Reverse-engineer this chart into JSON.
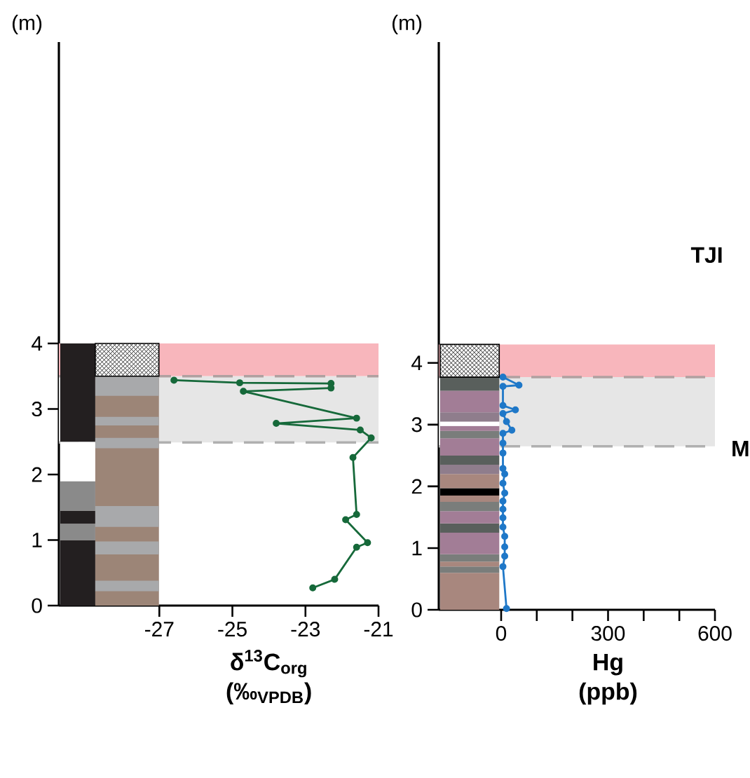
{
  "chart_data": [
    {
      "type": "line",
      "xlabel": "δ$^{13}$C$_{org}$ (‰$_{VPDB}$)",
      "ylabel": "(m)",
      "xlim": [
        -29.75,
        -21
      ],
      "xticks": [
        -27,
        -25,
        -23,
        -21
      ],
      "ylim": [
        0,
        8.6
      ],
      "yticks": [
        0,
        1,
        2,
        3,
        4
      ],
      "marker": "circle",
      "line_style": "solid",
      "bands": [
        {
          "axis": "y",
          "from": 3.5,
          "to": 4.0,
          "color": "#f8b6bc"
        },
        {
          "axis": "y",
          "from": 2.49,
          "to": 3.5,
          "color": "#e6e6e6"
        }
      ],
      "ref_lines": [
        {
          "axis": "y",
          "value": 3.5,
          "color": "#b0a0a0",
          "line_style": "dashed"
        },
        {
          "axis": "y",
          "value": 2.49,
          "color": "#b0b0b0",
          "line_style": "dashed"
        }
      ],
      "series": [
        {
          "color": "#16693a",
          "x": [
            -26.6,
            -24.8,
            -22.3,
            -22.3,
            -24.7,
            -21.6,
            -23.8,
            -21.5,
            -21.2,
            -21.7,
            -21.6,
            -21.9,
            -21.3,
            -21.6,
            -22.2,
            -22.8
          ],
          "values": [
            3.44,
            3.4,
            3.39,
            3.32,
            3.27,
            2.86,
            2.78,
            2.68,
            2.56,
            2.26,
            1.39,
            1.31,
            0.96,
            0.89,
            0.4,
            0.27
          ]
        }
      ]
    },
    {
      "type": "line",
      "xlabel": "Hg (ppb)",
      "ylabel": "(m)",
      "xlim": [
        -175,
        600
      ],
      "xticks": [
        0,
        {
          "value": 100,
          "label": null
        },
        {
          "value": 200,
          "label": null
        },
        300,
        {
          "value": 400,
          "label": null
        },
        {
          "value": 500,
          "label": null
        },
        600
      ],
      "ylim": [
        0,
        9.2
      ],
      "yticks": [
        0,
        1,
        2,
        3,
        4
      ],
      "marker": "circle",
      "line_style": "solid",
      "bands": [
        {
          "axis": "y",
          "from": 3.77,
          "to": 4.3,
          "color": "#f8b6bc"
        },
        {
          "axis": "y",
          "from": 2.65,
          "to": 3.77,
          "color": "#e6e6e6"
        }
      ],
      "ref_lines": [
        {
          "axis": "y",
          "value": 3.77,
          "color": "#b0a0a0",
          "line_style": "dashed"
        },
        {
          "axis": "y",
          "value": 2.65,
          "color": "#b0b0b0",
          "line_style": "dashed"
        }
      ],
      "annotations": [
        "TJI",
        "M"
      ],
      "series": [
        {
          "color": "#1f78c8",
          "x": [
            5,
            50,
            5,
            5,
            40,
            5,
            15,
            30,
            5,
            5,
            5,
            5,
            10,
            5,
            10,
            5,
            5,
            5,
            5,
            10,
            10,
            10,
            5,
            15
          ],
          "values": [
            3.77,
            3.64,
            3.62,
            3.31,
            3.24,
            3.18,
            3.05,
            2.91,
            2.86,
            2.7,
            2.54,
            2.29,
            2.2,
            2.05,
            1.89,
            1.76,
            1.63,
            1.49,
            1.34,
            1.19,
            1.02,
            0.87,
            0.7,
            0.02
          ]
        }
      ]
    }
  ]
}
